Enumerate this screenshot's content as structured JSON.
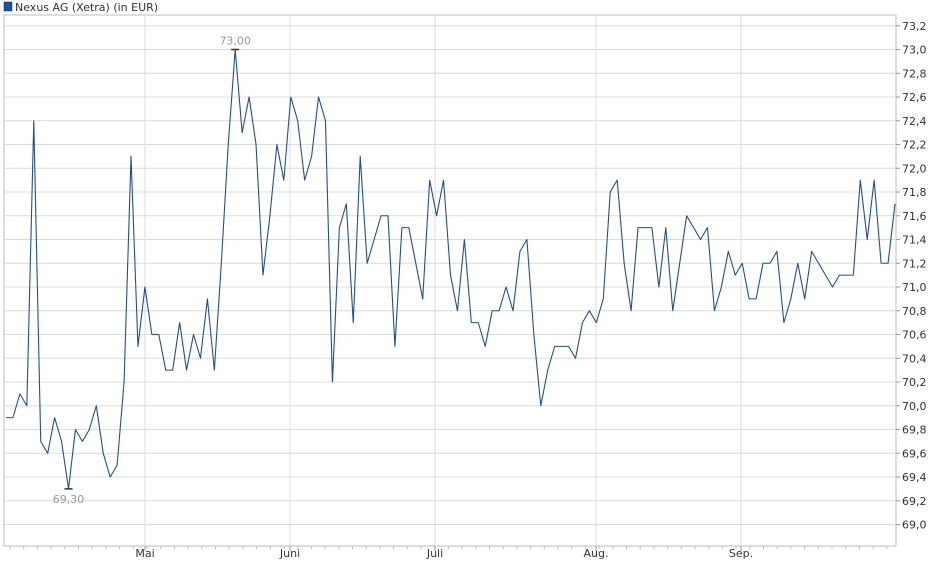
{
  "chart_data": {
    "type": "line",
    "legend": "Nexus AG (Xetra) (in EUR)",
    "x_tick_labels": [
      "Mai",
      "Juni",
      "Juli",
      "Aug.",
      "Sep."
    ],
    "y_tick_labels": [
      "69,0",
      "69,2",
      "69,4",
      "69,6",
      "69,8",
      "70,0",
      "70,2",
      "70,4",
      "70,6",
      "70,8",
      "71,0",
      "71,2",
      "71,4",
      "71,6",
      "71,8",
      "72,0",
      "72,2",
      "72,4",
      "72,6",
      "72,8",
      "73,0",
      "73,2"
    ],
    "ylim": [
      68.9,
      73.3
    ],
    "grid": true,
    "annotations": {
      "max_label": "73,00",
      "max_value": 73.0,
      "min_label": "69,30",
      "min_value": 69.3
    },
    "series": [
      {
        "color": "#1f4e9c",
        "values": [
          69.9,
          69.9,
          70.1,
          70.0,
          72.4,
          69.7,
          69.6,
          69.9,
          69.7,
          69.3,
          69.8,
          69.7,
          69.8,
          70.0,
          69.6,
          69.4,
          69.5,
          70.2,
          72.1,
          70.5,
          71.0,
          70.6,
          70.6,
          70.3,
          70.3,
          70.7,
          70.3,
          70.6,
          70.4,
          70.9,
          70.3,
          71.2,
          72.2,
          73.0,
          72.3,
          72.6,
          72.2,
          71.1,
          71.6,
          72.2,
          71.9,
          72.6,
          72.4,
          71.9,
          72.1,
          72.6,
          72.4,
          70.2,
          71.5,
          71.7,
          70.7,
          72.1,
          71.2,
          71.4,
          71.6,
          71.6,
          70.5,
          71.5,
          71.5,
          71.2,
          70.9,
          71.9,
          71.6,
          71.9,
          71.1,
          70.8,
          71.4,
          70.7,
          70.7,
          70.5,
          70.8,
          70.8,
          71.0,
          70.8,
          71.3,
          71.4,
          70.6,
          70.0,
          70.3,
          70.5,
          70.5,
          70.5,
          70.4,
          70.7,
          70.8,
          70.7,
          70.9,
          71.8,
          71.9,
          71.2,
          70.8,
          71.5,
          71.5,
          71.5,
          71.0,
          71.5,
          70.8,
          71.2,
          71.6,
          71.5,
          71.4,
          71.5,
          70.8,
          71.0,
          71.3,
          71.1,
          71.2,
          70.9,
          70.9,
          71.2,
          71.2,
          71.3,
          70.7,
          70.9,
          71.2,
          70.9,
          71.3,
          71.2,
          71.1,
          71.0,
          71.1,
          71.1,
          71.1,
          71.9,
          71.4,
          71.9,
          71.2,
          71.2,
          71.7
        ]
      }
    ]
  }
}
